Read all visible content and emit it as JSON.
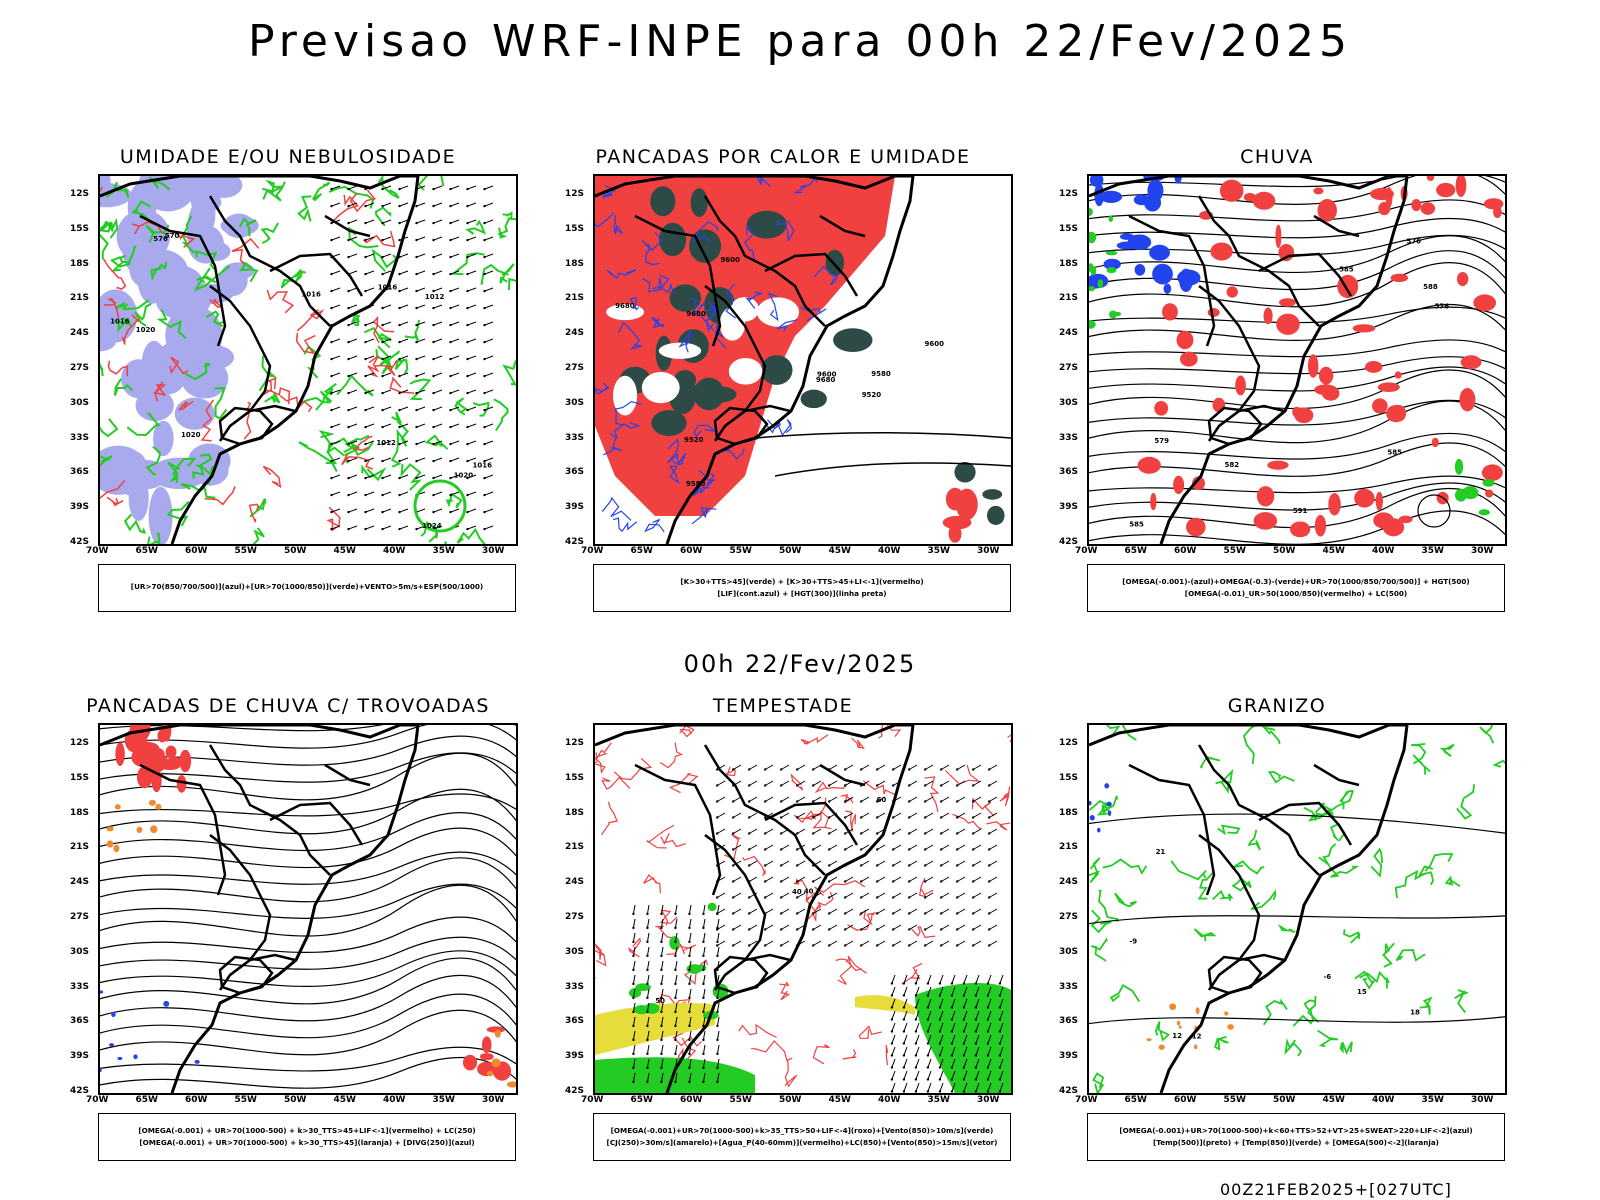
{
  "header": {
    "title": "Previsao WRF-INPE  para 00h 22/Fev/2025"
  },
  "mid_date": "00h 22/Fev/2025",
  "footer": "00Z21FEB2025+[027UTC]",
  "axes": {
    "lat_labels": [
      "12S",
      "15S",
      "18S",
      "21S",
      "24S",
      "27S",
      "30S",
      "33S",
      "36S",
      "39S",
      "42S"
    ],
    "lon_labels": [
      "70W",
      "65W",
      "60W",
      "55W",
      "50W",
      "45W",
      "40W",
      "35W",
      "30W"
    ]
  },
  "colors": {
    "blue_humidity": "#a9a9ee",
    "green": "#22cc22",
    "red": "#f04040",
    "dark_teal": "#2d4a46",
    "blue": "#2244ee",
    "yellow": "#e6dd3a",
    "orange": "#f08a30",
    "black": "#000000"
  },
  "panels": [
    {
      "id": "umidade",
      "title": "UMIDADE E/OU NEBULOSIDADE",
      "legend": [
        "[UR>70(850/700/500)](azul)+[UR>70(1000/850)](verde)+VENTO>5m/s+ESP(500/1000)"
      ],
      "contour_labels": [
        "1016",
        "1016",
        "1024",
        "1020",
        "1012",
        "1016",
        "1020",
        "1020",
        "1016",
        "1012",
        "576",
        "570"
      ]
    },
    {
      "id": "pancadas-calor",
      "title": "PANCADAS POR CALOR E UMIDADE",
      "legend": [
        "[K>30+TTS>45](verde) + [K>30+TTS>45+LI<-1](vermelho)",
        "[LIF](cont.azul) + [HGT(300)](linha preta)"
      ],
      "contour_labels": [
        "9680",
        "9680",
        "9580",
        "9600",
        "9680",
        "9580",
        "9600",
        "9520",
        "9600",
        "9520"
      ]
    },
    {
      "id": "chuva",
      "title": "CHUVA",
      "legend": [
        "[OMEGA(-0.001)-(azul)+OMEGA(-0.3)-(verde)+UR>70(1000/850/700/500)] + HGT(500)",
        "[OMEGA(-0.01)_UR>50(1000/850)(vermelho) + LC(500)"
      ],
      "contour_labels": [
        "585",
        "585",
        "591",
        "582",
        "576",
        "576",
        "585",
        "588",
        "579"
      ]
    },
    {
      "id": "trovoadas",
      "title": "PANCADAS DE CHUVA C/ TROVOADAS",
      "legend": [
        "[OMEGA(-0.001) + UR>70(1000-500) + k>30_TTS>45+LIF<-1](vermelho) + LC(250)",
        "[OMEGA(-0.001) + UR>70(1000-500) + k>30_TTS>45](laranja) + [DIVG(250)](azul)"
      ],
      "contour_labels": []
    },
    {
      "id": "tempestade",
      "title": "TEMPESTADE",
      "legend": [
        "[OMEGA(-0.001)+UR>70(1000-500)+k>35_TTS>50+LIF<-4](roxo)+[Vento(850)>10m/s](verde)",
        "[CJ(250)>30m/s](amarelo)+[Agua_P(40-60mm)](vermelho)+LC(850)+[Vento(850)>15m/s](vetor)"
      ],
      "contour_labels": [
        "50",
        "40",
        "40",
        "60"
      ]
    },
    {
      "id": "granizo",
      "title": "GRANIZO",
      "legend": [
        "[OMEGA(-0.001)+UR>70(1000-500)+k<60+TTS>52+VT>25+SWEAT>220+LIF<-2](azul)",
        "[Temp(500)](preto) + [Temp(850)](verde) + [OMEGA(500)<-2](laranja)"
      ],
      "contour_labels": [
        "-9",
        "-6",
        "12",
        "15",
        "18",
        "21",
        "-12"
      ]
    }
  ]
}
